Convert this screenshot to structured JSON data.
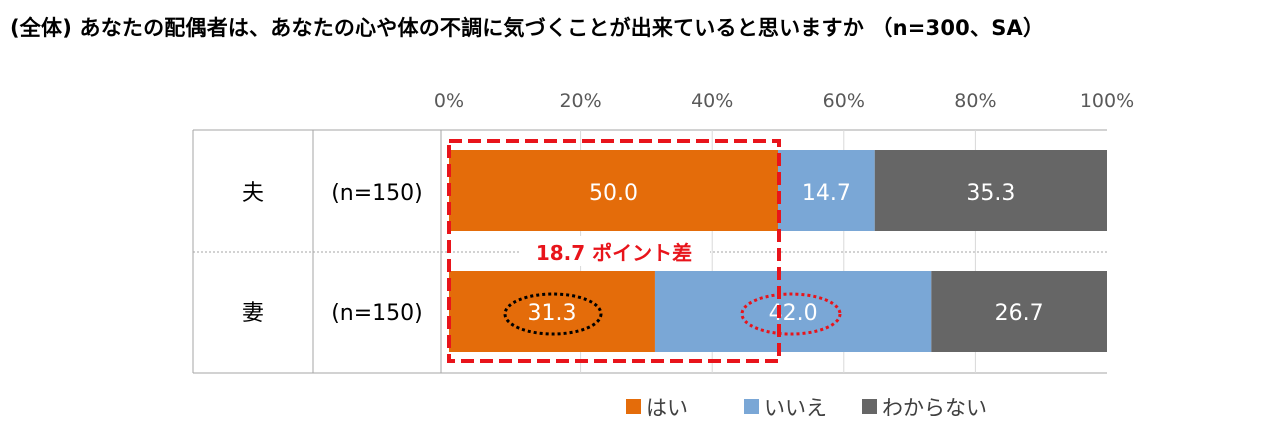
{
  "title": "(全体) あなたの配偶者は、あなたの心や体の不調に気づくことが出来ていると思いますか （n=300、SA）",
  "chart_data": {
    "type": "bar",
    "orientation": "horizontal",
    "stacked": true,
    "xlim": [
      0,
      100
    ],
    "ticks": [
      "0%",
      "20%",
      "40%",
      "60%",
      "80%",
      "100%"
    ],
    "tick_values": [
      0,
      20,
      40,
      60,
      80,
      100
    ],
    "categories": [
      "夫",
      "妻"
    ],
    "sample_sizes": [
      "(n=150)",
      "(n=150)"
    ],
    "series": [
      {
        "name": "はい",
        "color": "#e46c0a",
        "values": [
          50.0,
          31.3
        ],
        "labels": [
          "50.0",
          "31.3"
        ]
      },
      {
        "name": "いいえ",
        "color": "#7aa7d6",
        "values": [
          14.7,
          42.0
        ],
        "labels": [
          "14.7",
          "42.0"
        ]
      },
      {
        "name": "わからない",
        "color": "#666666",
        "values": [
          35.3,
          26.7
        ],
        "labels": [
          "35.3",
          "26.7"
        ]
      }
    ],
    "annotation": "18.7 ポイント差",
    "legend_position": "bottom",
    "grid": true
  }
}
